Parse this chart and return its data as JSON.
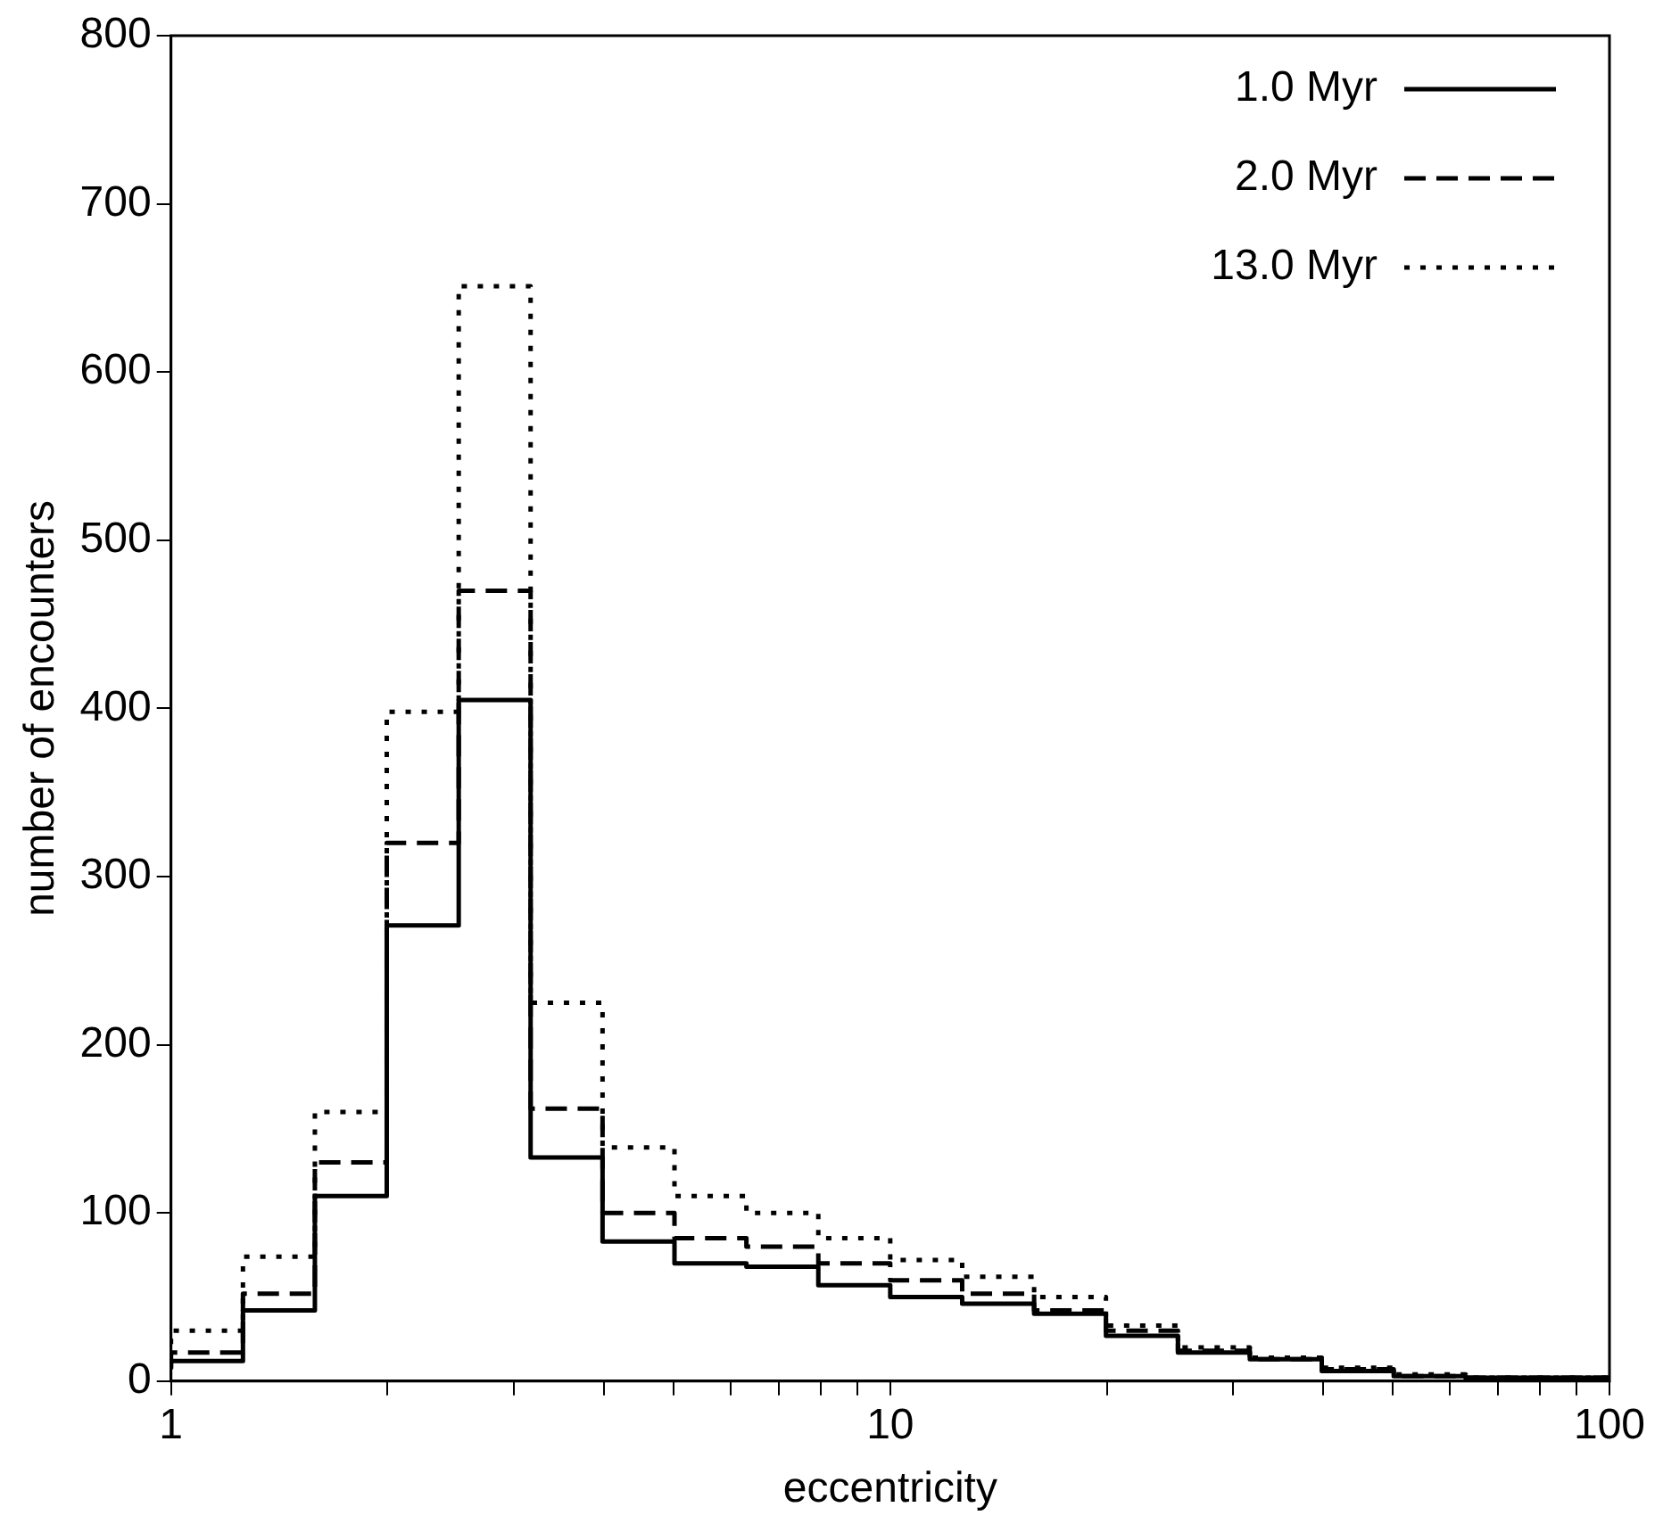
{
  "chart_data": {
    "type": "step",
    "xlabel": "eccentricity",
    "ylabel": "number of encounters",
    "log": "x",
    "x": [
      1,
      1.259,
      1.585,
      1.995,
      2.512,
      3.162,
      3.981,
      5.012,
      6.31,
      7.943,
      10,
      12.59,
      15.85,
      19.95,
      25.12,
      31.62,
      39.81,
      50.12,
      63.1,
      79.43,
      100
    ],
    "series": [
      {
        "name": "1.0 Myr",
        "color": "#000000",
        "line_style": "solid",
        "values": [
          7,
          12,
          42,
          110,
          271,
          405,
          133,
          83,
          70,
          68,
          57,
          50,
          46,
          40,
          27,
          17,
          13,
          6,
          3,
          2,
          2
        ]
      },
      {
        "name": "2.0 Myr",
        "color": "#000000",
        "line_style": "dashed",
        "values": [
          8,
          17,
          52,
          130,
          320,
          470,
          162,
          100,
          85,
          80,
          70,
          60,
          52,
          42,
          30,
          18,
          13,
          7,
          3,
          2,
          2
        ]
      },
      {
        "name": "13.0 Myr",
        "color": "#000000",
        "line_style": "dotted",
        "values": [
          22,
          30,
          74,
          160,
          398,
          651,
          225,
          139,
          110,
          100,
          85,
          72,
          62,
          50,
          33,
          20,
          14,
          8,
          4,
          2,
          2
        ]
      }
    ],
    "xlim": [
      1,
      100
    ],
    "xticks": [
      1,
      {
        "value": 2,
        "label": null
      },
      {
        "value": 3,
        "label": null
      },
      {
        "value": 4,
        "label": null
      },
      {
        "value": 5,
        "label": null
      },
      {
        "value": 6,
        "label": null
      },
      {
        "value": 7,
        "label": null
      },
      {
        "value": 8,
        "label": null
      },
      {
        "value": 9,
        "label": null
      },
      10,
      {
        "value": 20,
        "label": null
      },
      {
        "value": 30,
        "label": null
      },
      {
        "value": 40,
        "label": null
      },
      {
        "value": 50,
        "label": null
      },
      {
        "value": 60,
        "label": null
      },
      {
        "value": 70,
        "label": null
      },
      {
        "value": 80,
        "label": null
      },
      {
        "value": 90,
        "label": null
      },
      100
    ],
    "ylim": [
      0,
      800
    ],
    "yticks": [
      0,
      100,
      200,
      300,
      400,
      500,
      600,
      700,
      800
    ],
    "grid": false,
    "legend": "top right"
  }
}
